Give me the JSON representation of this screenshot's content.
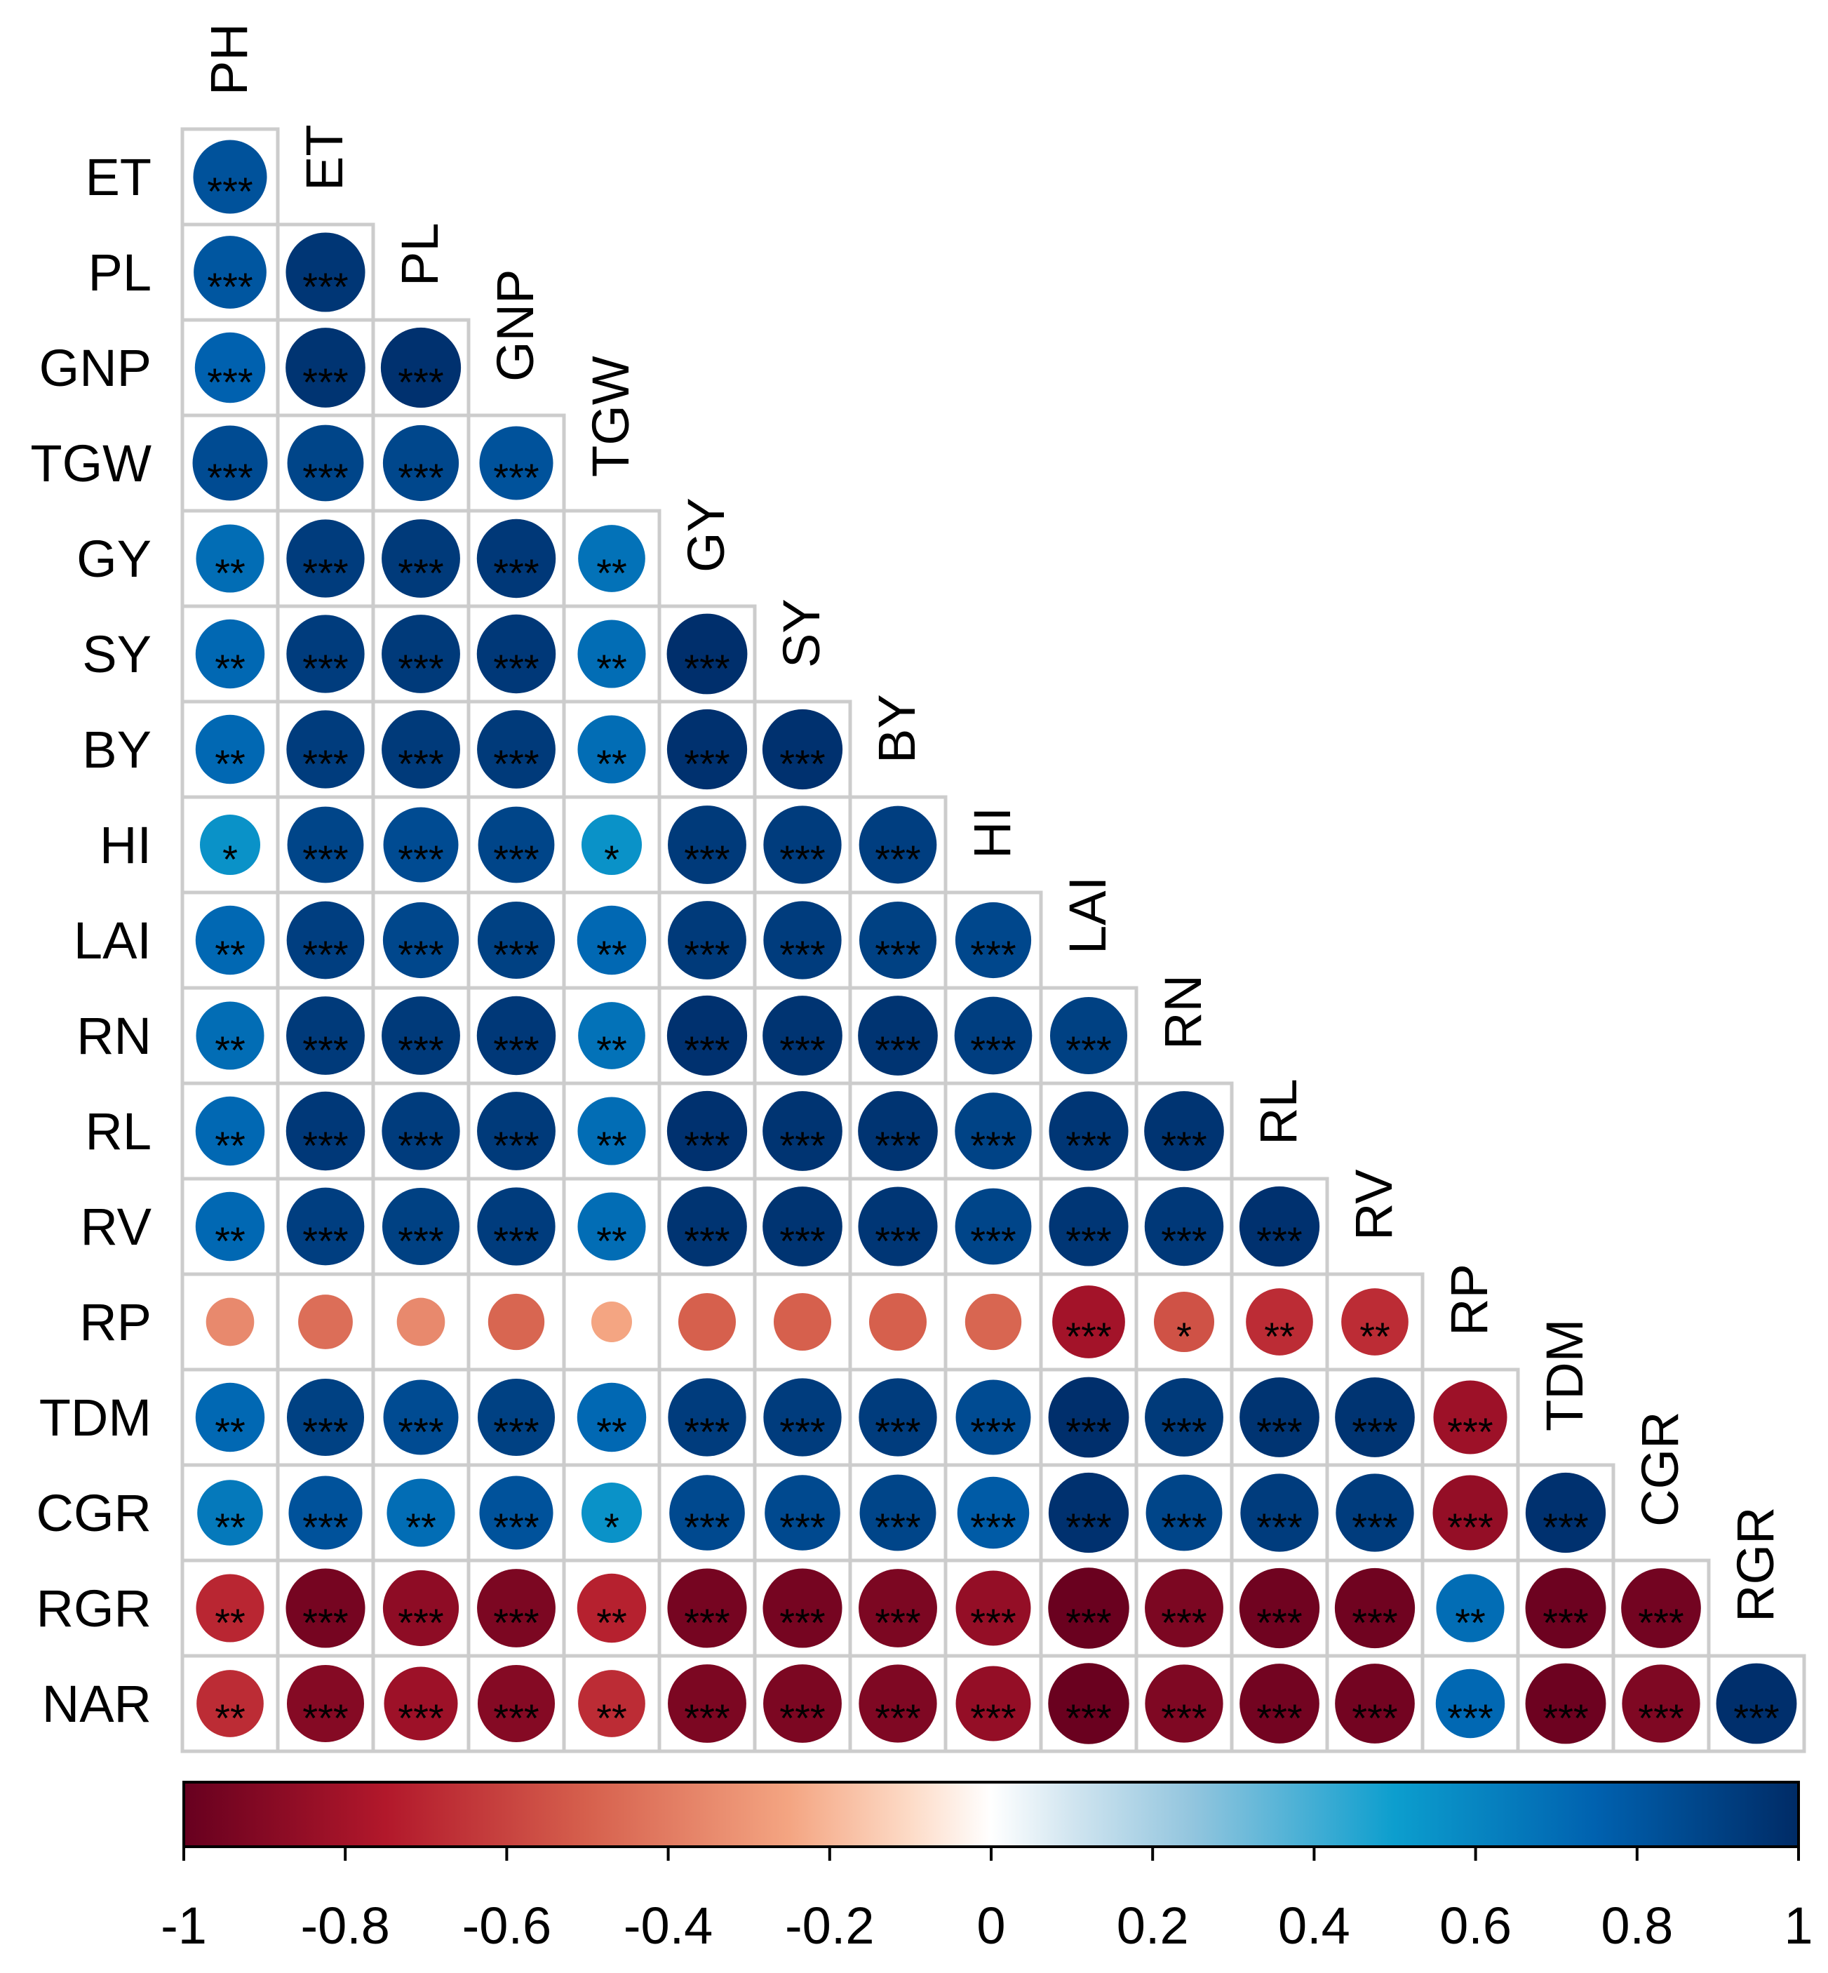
{
  "chart_data": {
    "type": "heatmap",
    "title": "",
    "xlabel": "",
    "ylabel": "",
    "layout": "lower-triangle",
    "glyph": "circle",
    "variables": [
      "PH",
      "ET",
      "PL",
      "GNP",
      "TGW",
      "GY",
      "SY",
      "BY",
      "HI",
      "LAI",
      "RN",
      "RL",
      "RV",
      "RP",
      "TDM",
      "CGR",
      "RGR",
      "NAR"
    ],
    "matrix": [
      [
        0.82
      ],
      [
        0.8,
        0.95
      ],
      [
        0.75,
        0.96,
        0.97
      ],
      [
        0.85,
        0.88,
        0.87,
        0.82
      ],
      [
        0.7,
        0.92,
        0.93,
        0.94,
        0.68
      ],
      [
        0.72,
        0.92,
        0.93,
        0.94,
        0.7,
        0.98
      ],
      [
        0.72,
        0.92,
        0.93,
        0.93,
        0.7,
        0.97,
        0.97
      ],
      [
        0.55,
        0.88,
        0.85,
        0.88,
        0.55,
        0.93,
        0.92,
        0.91
      ],
      [
        0.72,
        0.91,
        0.87,
        0.9,
        0.72,
        0.93,
        0.92,
        0.9,
        0.87
      ],
      [
        0.7,
        0.93,
        0.93,
        0.94,
        0.68,
        0.97,
        0.96,
        0.96,
        0.91,
        0.9
      ],
      [
        0.72,
        0.94,
        0.92,
        0.93,
        0.7,
        0.97,
        0.96,
        0.96,
        0.89,
        0.95,
        0.96
      ],
      [
        0.72,
        0.91,
        0.9,
        0.92,
        0.7,
        0.96,
        0.96,
        0.95,
        0.88,
        0.95,
        0.94,
        0.97
      ],
      [
        -0.35,
        -0.45,
        -0.35,
        -0.48,
        -0.25,
        -0.5,
        -0.5,
        -0.5,
        -0.48,
        -0.8,
        -0.55,
        -0.68,
        -0.68
      ],
      [
        0.72,
        0.9,
        0.85,
        0.9,
        0.72,
        0.92,
        0.92,
        0.92,
        0.85,
        0.98,
        0.93,
        0.96,
        0.96,
        -0.82
      ],
      [
        0.65,
        0.82,
        0.7,
        0.82,
        0.55,
        0.86,
        0.86,
        0.88,
        0.78,
        0.97,
        0.88,
        0.92,
        0.92,
        -0.85,
        0.97
      ],
      [
        -0.7,
        -0.95,
        -0.87,
        -0.93,
        -0.72,
        -0.95,
        -0.95,
        -0.93,
        -0.85,
        -0.99,
        -0.93,
        -0.97,
        -0.97,
        0.7,
        -0.98,
        -0.96
      ],
      [
        -0.68,
        -0.9,
        -0.82,
        -0.9,
        -0.68,
        -0.93,
        -0.93,
        -0.92,
        -0.85,
        -0.99,
        -0.92,
        -0.96,
        -0.96,
        0.72,
        -0.98,
        -0.92,
        0.98
      ]
    ],
    "significance": [
      [
        "***"
      ],
      [
        "***",
        "***"
      ],
      [
        "***",
        "***",
        "***"
      ],
      [
        "***",
        "***",
        "***",
        "***"
      ],
      [
        "**",
        "***",
        "***",
        "***",
        "**"
      ],
      [
        "**",
        "***",
        "***",
        "***",
        "**",
        "***"
      ],
      [
        "**",
        "***",
        "***",
        "***",
        "**",
        "***",
        "***"
      ],
      [
        "*",
        "***",
        "***",
        "***",
        "*",
        "***",
        "***",
        "***"
      ],
      [
        "**",
        "***",
        "***",
        "***",
        "**",
        "***",
        "***",
        "***",
        "***"
      ],
      [
        "**",
        "***",
        "***",
        "***",
        "**",
        "***",
        "***",
        "***",
        "***",
        "***"
      ],
      [
        "**",
        "***",
        "***",
        "***",
        "**",
        "***",
        "***",
        "***",
        "***",
        "***",
        "***"
      ],
      [
        "**",
        "***",
        "***",
        "***",
        "**",
        "***",
        "***",
        "***",
        "***",
        "***",
        "***",
        "***"
      ],
      [
        "",
        "",
        "",
        "",
        "",
        "",
        "",
        "",
        "",
        "***",
        "*",
        "**",
        "**"
      ],
      [
        "**",
        "***",
        "***",
        "***",
        "**",
        "***",
        "***",
        "***",
        "***",
        "***",
        "***",
        "***",
        "***",
        "***"
      ],
      [
        "**",
        "***",
        "**",
        "***",
        "*",
        "***",
        "***",
        "***",
        "***",
        "***",
        "***",
        "***",
        "***",
        "***",
        "***"
      ],
      [
        "**",
        "***",
        "***",
        "***",
        "**",
        "***",
        "***",
        "***",
        "***",
        "***",
        "***",
        "***",
        "***",
        "**",
        "***",
        "***"
      ],
      [
        "**",
        "***",
        "***",
        "***",
        "**",
        "***",
        "***",
        "***",
        "***",
        "***",
        "***",
        "***",
        "***",
        "***",
        "***",
        "***",
        "***"
      ]
    ],
    "colorbar": {
      "range": [
        -1,
        1
      ],
      "ticks": [
        -1,
        -0.8,
        -0.6,
        -0.4,
        -0.2,
        0,
        0.2,
        0.4,
        0.6,
        0.8,
        1
      ],
      "tick_labels": [
        "-1",
        "-0.8",
        "-0.6",
        "-0.4",
        "-0.2",
        "0",
        "0.2",
        "0.4",
        "0.6",
        "0.8",
        "1"
      ],
      "stops": [
        {
          "v": -1.0,
          "color": "#67001F"
        },
        {
          "v": -0.75,
          "color": "#B2182B"
        },
        {
          "v": -0.5,
          "color": "#D6604D"
        },
        {
          "v": -0.25,
          "color": "#F4A582"
        },
        {
          "v": -0.1,
          "color": "#FDDBC7"
        },
        {
          "v": 0.0,
          "color": "#FFFFFF"
        },
        {
          "v": 0.1,
          "color": "#D1E5F0"
        },
        {
          "v": 0.25,
          "color": "#92C5DE"
        },
        {
          "v": 0.5,
          "color": "#0C9ECE"
        },
        {
          "v": 0.75,
          "color": "#0061AF"
        },
        {
          "v": 1.0,
          "color": "#002B66"
        }
      ]
    }
  },
  "colors": {
    "grid_border": "#CCCCCC",
    "background": "#FFFFFF",
    "text": "#000000"
  }
}
